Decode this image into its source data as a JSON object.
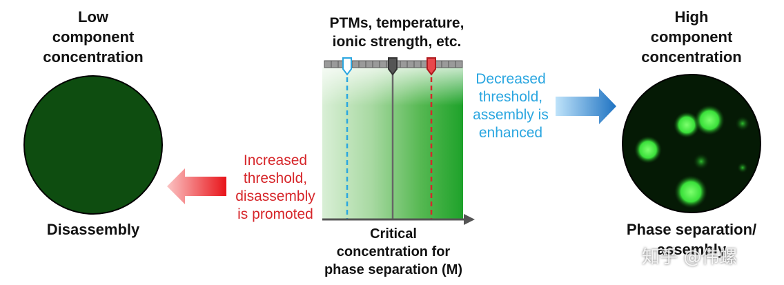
{
  "left": {
    "title": "Low\ncomponent\nconcentration",
    "caption": "Disassembly"
  },
  "right": {
    "title": "High\ncomponent\nconcentration",
    "caption": "Phase separation/\nassembly"
  },
  "center": {
    "top_label": "PTMs, temperature,\nionic strength, etc.",
    "axis_label": "Critical\nconcentration for\nphase separation (M)"
  },
  "annotations": {
    "decreased": "Decreased\nthreshold,\nassembly is\nenhanced",
    "increased": "Increased\nthreshold,\ndisassembly\nis promoted"
  },
  "watermark": "知乎 @伟螺",
  "colors": {
    "dark_green": "#0e4d10",
    "bright_green": "#33e033",
    "blue": "#2aa6e0",
    "red": "#d6262a"
  }
}
